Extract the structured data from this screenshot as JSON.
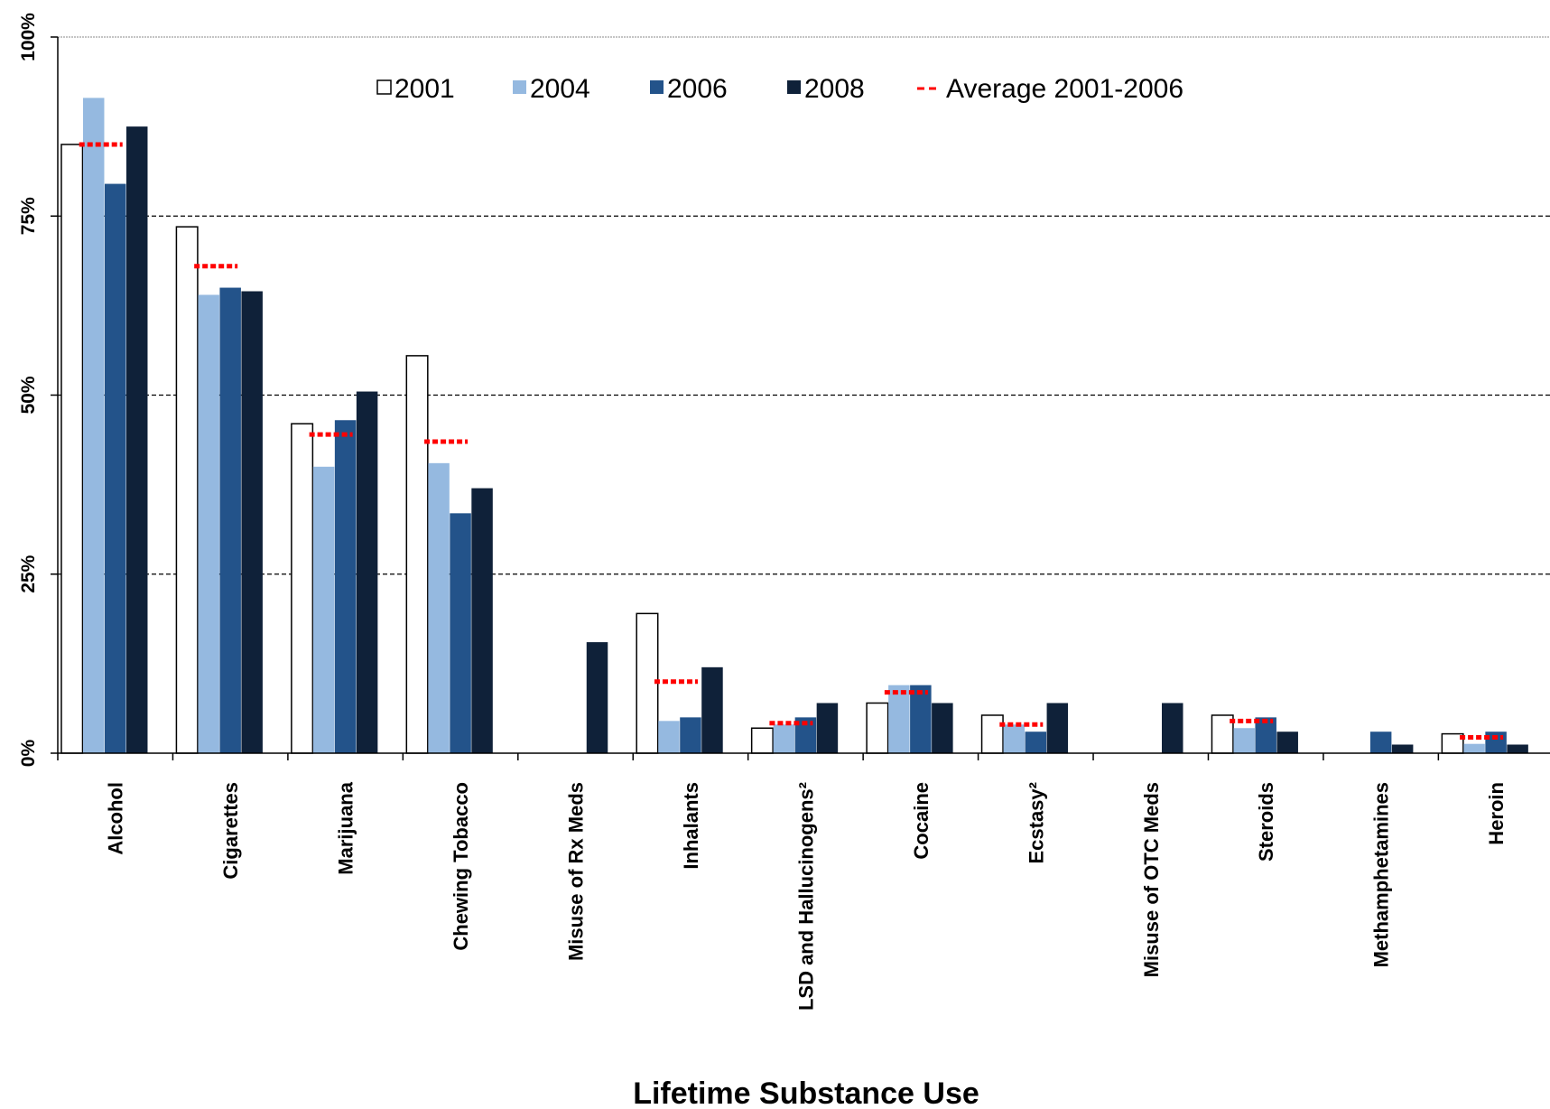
{
  "chart_data": {
    "type": "bar",
    "title": "",
    "xlabel": "Lifetime Substance Use",
    "ylabel": "",
    "ylim": [
      0,
      100
    ],
    "yticks": [
      0,
      25,
      50,
      75,
      100
    ],
    "ytick_labels": [
      "0%",
      "25%",
      "50%",
      "75%",
      "100%"
    ],
    "grid": "horizontal dashed",
    "legend_position": "top-center",
    "categories": [
      "Alcohol",
      "Cigarettes",
      "Marijuana",
      "Chewing Tobacco",
      "Misuse of Rx Meds",
      "Inhalants",
      "LSD and Hallucinogens²",
      "Cocaine",
      "Ecstasy²",
      "Misuse of OTC Meds",
      "Steroids",
      "Methamphetamines",
      "Heroin"
    ],
    "series": [
      {
        "name": "2001",
        "color": "#ffffff",
        "values": [
          85,
          73.5,
          46,
          55.5,
          null,
          19.5,
          3.5,
          7,
          5.3,
          null,
          5.3,
          null,
          2.7
        ]
      },
      {
        "name": "2004",
        "color": "#95b9e0",
        "values": [
          91.5,
          64,
          40,
          40.5,
          null,
          4.5,
          4,
          9.5,
          4,
          null,
          3.5,
          null,
          1.3
        ]
      },
      {
        "name": "2006",
        "color": "#23538a",
        "values": [
          79.5,
          65,
          46.5,
          33.5,
          null,
          5,
          5,
          9.5,
          3,
          null,
          5,
          3,
          3
        ]
      },
      {
        "name": "2008",
        "color": "#0f2139",
        "values": [
          87.5,
          64.5,
          50.5,
          37,
          15.5,
          12,
          7,
          7,
          7,
          7,
          3,
          1.2,
          1.2
        ]
      }
    ],
    "average": {
      "name": "Average 2001-2006",
      "color": "#ff0000",
      "values": [
        85,
        68,
        44.5,
        43.5,
        null,
        10,
        4.2,
        8.5,
        4,
        null,
        4.5,
        null,
        2.2
      ]
    }
  }
}
